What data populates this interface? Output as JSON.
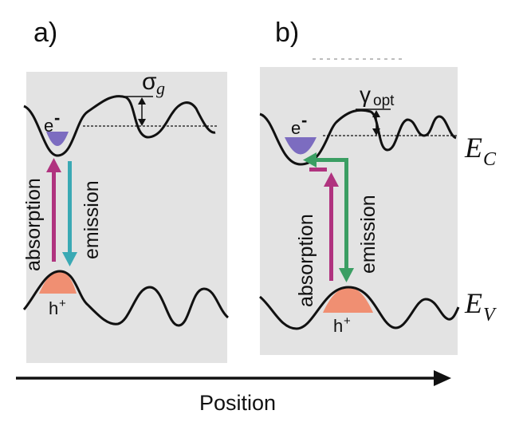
{
  "panels": {
    "a": {
      "label": "a)",
      "sigma_symbol": "σ",
      "sigma_sub": "g",
      "electron": "e",
      "electron_sup": "-",
      "hole": "h",
      "hole_sup": "+",
      "absorption": "absorption",
      "emission": "emission"
    },
    "b": {
      "label": "b)",
      "gamma_symbol": "γ",
      "gamma_sub": "opt",
      "electron": "e",
      "electron_sup": "-",
      "hole": "h",
      "hole_sup": "+",
      "absorption": "absorption",
      "emission": "emission"
    }
  },
  "bands": {
    "conduction": "E",
    "conduction_sub": "C",
    "valence": "E",
    "valence_sub": "V"
  },
  "axis": {
    "label": "Position"
  },
  "colors": {
    "panel_bg": "#e3e3e3",
    "absorption": "#b0337f",
    "emission_a": "#3aa9b4",
    "emission_b": "#3b9e63",
    "electron_fill": "#7c6cc0",
    "hole_fill": "#f08f72"
  }
}
